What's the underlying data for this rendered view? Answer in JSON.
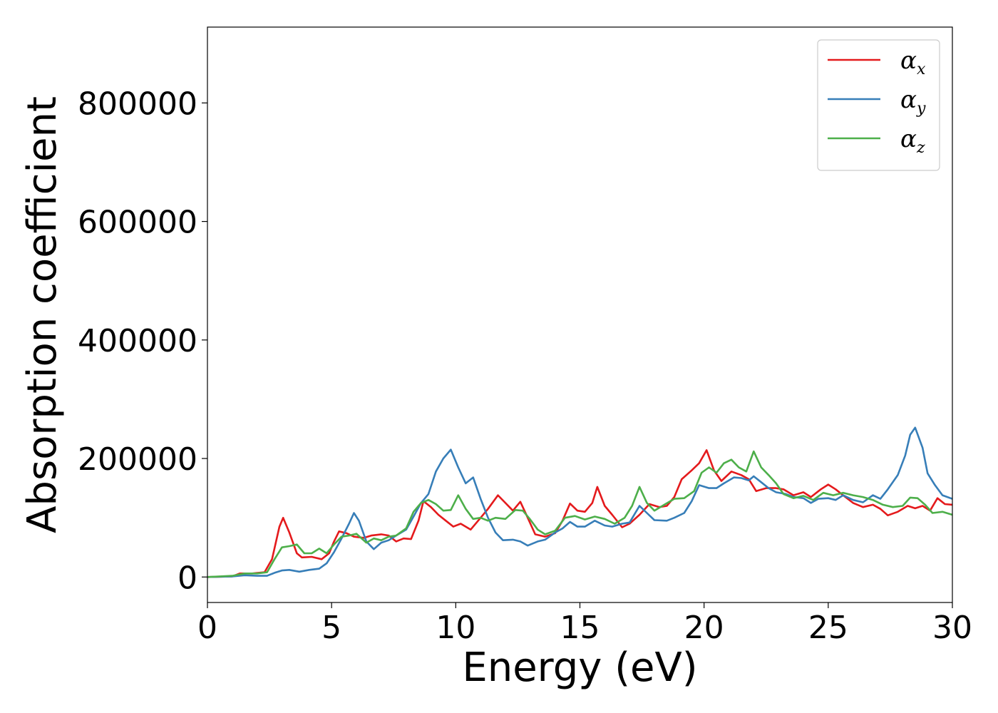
{
  "chart_data": {
    "type": "line",
    "title": "",
    "xlabel": "Energy (eV)",
    "ylabel": "Absorption coefficient",
    "xlim": [
      0,
      30
    ],
    "ylim": [
      -43000,
      928000
    ],
    "xticks": [
      0,
      5,
      10,
      15,
      20,
      25,
      30
    ],
    "xtick_labels": [
      "0",
      "5",
      "10",
      "15",
      "20",
      "25",
      "30"
    ],
    "yticks": [
      0,
      200000,
      400000,
      600000,
      800000
    ],
    "ytick_labels": [
      "0",
      "200000",
      "400000",
      "600000",
      "800000"
    ],
    "grid": false,
    "legend_position": "top-right",
    "series": [
      {
        "name": "αx",
        "symbol": "α",
        "subscript": "x",
        "color": "#e41a1c",
        "points": [
          [
            0,
            0
          ],
          [
            1.0,
            1000
          ],
          [
            1.3,
            6000
          ],
          [
            1.8,
            6000
          ],
          [
            2.3,
            8000
          ],
          [
            2.6,
            30000
          ],
          [
            2.9,
            85000
          ],
          [
            3.05,
            100000
          ],
          [
            3.3,
            75000
          ],
          [
            3.6,
            40000
          ],
          [
            3.8,
            33000
          ],
          [
            4.2,
            34000
          ],
          [
            4.6,
            30000
          ],
          [
            4.9,
            40000
          ],
          [
            5.1,
            60000
          ],
          [
            5.3,
            77000
          ],
          [
            5.6,
            74000
          ],
          [
            5.9,
            68000
          ],
          [
            6.3,
            66000
          ],
          [
            6.6,
            70000
          ],
          [
            7.0,
            72000
          ],
          [
            7.3,
            70000
          ],
          [
            7.6,
            60000
          ],
          [
            7.9,
            65000
          ],
          [
            8.2,
            64000
          ],
          [
            8.5,
            95000
          ],
          [
            8.7,
            128000
          ],
          [
            9.0,
            118000
          ],
          [
            9.3,
            105000
          ],
          [
            9.6,
            95000
          ],
          [
            9.9,
            85000
          ],
          [
            10.2,
            90000
          ],
          [
            10.6,
            80000
          ],
          [
            11.0,
            100000
          ],
          [
            11.3,
            115000
          ],
          [
            11.7,
            138000
          ],
          [
            12.0,
            125000
          ],
          [
            12.3,
            112000
          ],
          [
            12.6,
            127000
          ],
          [
            12.9,
            100000
          ],
          [
            13.2,
            72000
          ],
          [
            13.6,
            68000
          ],
          [
            14.0,
            74000
          ],
          [
            14.3,
            95000
          ],
          [
            14.6,
            124000
          ],
          [
            14.9,
            112000
          ],
          [
            15.2,
            110000
          ],
          [
            15.5,
            125000
          ],
          [
            15.7,
            152000
          ],
          [
            16.0,
            120000
          ],
          [
            16.3,
            105000
          ],
          [
            16.7,
            84000
          ],
          [
            17.0,
            90000
          ],
          [
            17.4,
            105000
          ],
          [
            17.8,
            123000
          ],
          [
            18.2,
            118000
          ],
          [
            18.5,
            120000
          ],
          [
            18.8,
            135000
          ],
          [
            19.1,
            165000
          ],
          [
            19.5,
            180000
          ],
          [
            19.8,
            192000
          ],
          [
            20.1,
            214000
          ],
          [
            20.4,
            180000
          ],
          [
            20.7,
            162000
          ],
          [
            21.1,
            178000
          ],
          [
            21.5,
            172000
          ],
          [
            21.8,
            165000
          ],
          [
            22.1,
            145000
          ],
          [
            22.5,
            150000
          ],
          [
            22.9,
            150000
          ],
          [
            23.2,
            148000
          ],
          [
            23.6,
            138000
          ],
          [
            24.0,
            143000
          ],
          [
            24.3,
            135000
          ],
          [
            24.7,
            148000
          ],
          [
            25.0,
            156000
          ],
          [
            25.3,
            148000
          ],
          [
            25.6,
            138000
          ],
          [
            26.0,
            125000
          ],
          [
            26.4,
            118000
          ],
          [
            26.8,
            122000
          ],
          [
            27.1,
            115000
          ],
          [
            27.4,
            104000
          ],
          [
            27.8,
            110000
          ],
          [
            28.2,
            120000
          ],
          [
            28.5,
            116000
          ],
          [
            28.8,
            120000
          ],
          [
            29.1,
            112000
          ],
          [
            29.4,
            133000
          ],
          [
            29.7,
            123000
          ],
          [
            30,
            122000
          ]
        ]
      },
      {
        "name": "αy",
        "symbol": "α",
        "subscript": "y",
        "color": "#377eb8",
        "points": [
          [
            0,
            0
          ],
          [
            1.0,
            1000
          ],
          [
            1.5,
            3000
          ],
          [
            2.0,
            2000
          ],
          [
            2.4,
            2000
          ],
          [
            2.7,
            7000
          ],
          [
            3.0,
            11000
          ],
          [
            3.3,
            12000
          ],
          [
            3.7,
            9000
          ],
          [
            4.1,
            12000
          ],
          [
            4.5,
            14000
          ],
          [
            4.8,
            23000
          ],
          [
            5.1,
            42000
          ],
          [
            5.4,
            65000
          ],
          [
            5.7,
            90000
          ],
          [
            5.9,
            108000
          ],
          [
            6.1,
            95000
          ],
          [
            6.4,
            60000
          ],
          [
            6.7,
            47000
          ],
          [
            7.0,
            58000
          ],
          [
            7.3,
            62000
          ],
          [
            7.6,
            70000
          ],
          [
            8.0,
            80000
          ],
          [
            8.3,
            102000
          ],
          [
            8.6,
            125000
          ],
          [
            8.9,
            140000
          ],
          [
            9.2,
            178000
          ],
          [
            9.5,
            200000
          ],
          [
            9.8,
            215000
          ],
          [
            10.1,
            185000
          ],
          [
            10.4,
            158000
          ],
          [
            10.7,
            168000
          ],
          [
            11.0,
            132000
          ],
          [
            11.3,
            100000
          ],
          [
            11.6,
            75000
          ],
          [
            11.9,
            62000
          ],
          [
            12.3,
            63000
          ],
          [
            12.6,
            60000
          ],
          [
            12.9,
            53000
          ],
          [
            13.3,
            60000
          ],
          [
            13.6,
            63000
          ],
          [
            14.0,
            75000
          ],
          [
            14.3,
            82000
          ],
          [
            14.6,
            93000
          ],
          [
            14.9,
            85000
          ],
          [
            15.2,
            85000
          ],
          [
            15.6,
            95000
          ],
          [
            16.0,
            87000
          ],
          [
            16.3,
            85000
          ],
          [
            16.7,
            90000
          ],
          [
            17.0,
            92000
          ],
          [
            17.4,
            120000
          ],
          [
            17.7,
            108000
          ],
          [
            18.0,
            96000
          ],
          [
            18.5,
            95000
          ],
          [
            18.8,
            100000
          ],
          [
            19.2,
            108000
          ],
          [
            19.5,
            128000
          ],
          [
            19.8,
            155000
          ],
          [
            20.2,
            150000
          ],
          [
            20.5,
            150000
          ],
          [
            20.8,
            158000
          ],
          [
            21.2,
            168000
          ],
          [
            21.5,
            167000
          ],
          [
            21.8,
            163000
          ],
          [
            22.0,
            170000
          ],
          [
            22.3,
            160000
          ],
          [
            22.6,
            150000
          ],
          [
            22.9,
            143000
          ],
          [
            23.3,
            140000
          ],
          [
            23.6,
            135000
          ],
          [
            24.0,
            133000
          ],
          [
            24.3,
            125000
          ],
          [
            24.6,
            132000
          ],
          [
            25.0,
            133000
          ],
          [
            25.3,
            130000
          ],
          [
            25.6,
            138000
          ],
          [
            26.0,
            130000
          ],
          [
            26.4,
            126000
          ],
          [
            26.8,
            138000
          ],
          [
            27.1,
            132000
          ],
          [
            27.4,
            148000
          ],
          [
            27.8,
            172000
          ],
          [
            28.1,
            205000
          ],
          [
            28.3,
            240000
          ],
          [
            28.5,
            252000
          ],
          [
            28.8,
            218000
          ],
          [
            29.0,
            175000
          ],
          [
            29.3,
            155000
          ],
          [
            29.6,
            138000
          ],
          [
            30,
            132000
          ]
        ]
      },
      {
        "name": "αz",
        "symbol": "α",
        "subscript": "z",
        "color": "#4daf4a",
        "points": [
          [
            0,
            0
          ],
          [
            1.0,
            2000
          ],
          [
            1.5,
            6000
          ],
          [
            2.0,
            6000
          ],
          [
            2.4,
            8000
          ],
          [
            2.7,
            30000
          ],
          [
            3.0,
            50000
          ],
          [
            3.3,
            52000
          ],
          [
            3.6,
            55000
          ],
          [
            3.9,
            40000
          ],
          [
            4.2,
            40000
          ],
          [
            4.5,
            48000
          ],
          [
            4.8,
            40000
          ],
          [
            5.1,
            55000
          ],
          [
            5.4,
            68000
          ],
          [
            5.7,
            70000
          ],
          [
            6.0,
            73000
          ],
          [
            6.4,
            58000
          ],
          [
            6.7,
            65000
          ],
          [
            7.0,
            62000
          ],
          [
            7.3,
            68000
          ],
          [
            7.6,
            70000
          ],
          [
            8.0,
            82000
          ],
          [
            8.3,
            110000
          ],
          [
            8.6,
            125000
          ],
          [
            8.9,
            130000
          ],
          [
            9.2,
            123000
          ],
          [
            9.5,
            112000
          ],
          [
            9.8,
            113000
          ],
          [
            10.1,
            138000
          ],
          [
            10.4,
            115000
          ],
          [
            10.7,
            98000
          ],
          [
            11.0,
            100000
          ],
          [
            11.3,
            95000
          ],
          [
            11.6,
            100000
          ],
          [
            12.0,
            98000
          ],
          [
            12.4,
            113000
          ],
          [
            12.7,
            112000
          ],
          [
            13.0,
            97000
          ],
          [
            13.3,
            80000
          ],
          [
            13.6,
            72000
          ],
          [
            14.0,
            78000
          ],
          [
            14.4,
            100000
          ],
          [
            14.8,
            103000
          ],
          [
            15.2,
            97000
          ],
          [
            15.6,
            102000
          ],
          [
            16.0,
            98000
          ],
          [
            16.4,
            90000
          ],
          [
            16.8,
            100000
          ],
          [
            17.1,
            120000
          ],
          [
            17.4,
            152000
          ],
          [
            17.7,
            125000
          ],
          [
            18.0,
            112000
          ],
          [
            18.4,
            122000
          ],
          [
            18.8,
            132000
          ],
          [
            19.2,
            133000
          ],
          [
            19.6,
            145000
          ],
          [
            19.9,
            176000
          ],
          [
            20.2,
            185000
          ],
          [
            20.5,
            176000
          ],
          [
            20.8,
            192000
          ],
          [
            21.1,
            198000
          ],
          [
            21.4,
            185000
          ],
          [
            21.7,
            178000
          ],
          [
            22.0,
            212000
          ],
          [
            22.3,
            185000
          ],
          [
            22.6,
            172000
          ],
          [
            22.9,
            158000
          ],
          [
            23.2,
            140000
          ],
          [
            23.6,
            133000
          ],
          [
            24.0,
            137000
          ],
          [
            24.4,
            130000
          ],
          [
            24.8,
            142000
          ],
          [
            25.2,
            138000
          ],
          [
            25.6,
            142000
          ],
          [
            26.0,
            138000
          ],
          [
            26.4,
            135000
          ],
          [
            26.8,
            130000
          ],
          [
            27.2,
            122000
          ],
          [
            27.6,
            118000
          ],
          [
            28.0,
            120000
          ],
          [
            28.3,
            134000
          ],
          [
            28.6,
            133000
          ],
          [
            28.9,
            122000
          ],
          [
            29.2,
            108000
          ],
          [
            29.6,
            110000
          ],
          [
            30,
            105000
          ]
        ]
      }
    ]
  }
}
